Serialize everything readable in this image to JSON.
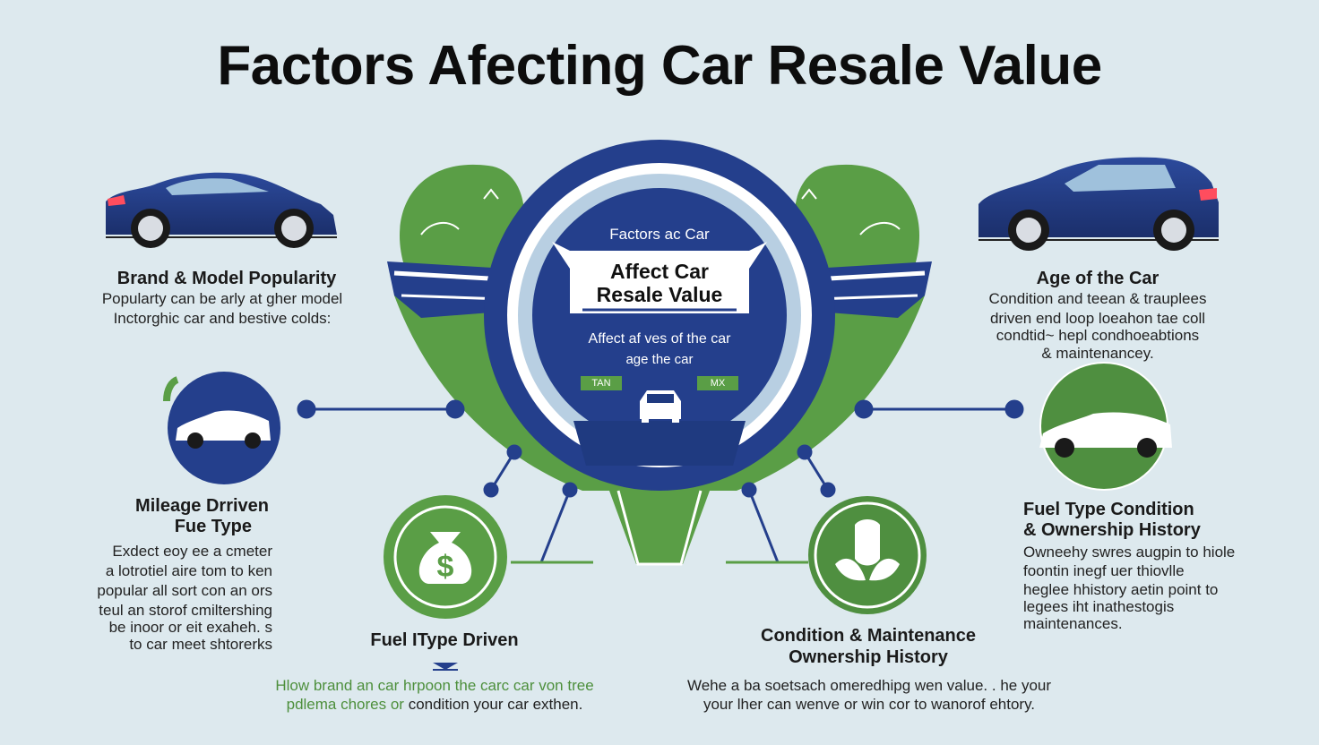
{
  "title": "Factors Afecting Car Resale Value",
  "hub": {
    "top_label": "Factors ac Car",
    "banner_line1": "Affect Car",
    "banner_line2": "Resale Value",
    "sub_line1": "Affect af ves of the car",
    "sub_line2": "age the car",
    "tag_left": "TAN",
    "tag_right": "MX"
  },
  "factors": {
    "brand": {
      "heading": "Brand & Model Popularity",
      "lines": [
        "Popularty can be arly at gher model",
        "Inctorghic car and bestive colds:"
      ]
    },
    "age": {
      "heading": "Age of the Car",
      "lines": [
        "Condition and teean & trauplees",
        "driven end loop loeahon tae coll",
        "condtid~ hepl condhoeabtions",
        "& maintenancey."
      ]
    },
    "mileage": {
      "heading_line1": "Mileage Drriven",
      "heading_line2": "Fue Type",
      "lines": [
        "Exdect eoy ee a cmeter",
        "a lotrotiel aire tom to ken",
        "popular all sort con an ors",
        "teul an storof cmiltershing",
        "be inoor or eit exaheh. s",
        "to car meet shtorerks"
      ]
    },
    "fuel_ownership": {
      "heading_line1": "Fuel Type Condition",
      "heading_line2": "& Ownership History",
      "lines": [
        "Owneehy swres augpin to hiole",
        "foontin inegf uer thiovlle",
        "heglee hhistory aetin point to",
        "legees iht inathestogis",
        "maintenances."
      ]
    },
    "fuel_driven": {
      "heading": "Fuel IType Driven"
    },
    "condition": {
      "heading_line1": "Condition & Maintenance",
      "heading_line2": "Ownership History"
    }
  },
  "bottom": {
    "left_line1": "Hlow brand an car hrpoon the carc car von tree",
    "left_line2_green": "pdlema chores or",
    "left_line2_rest": " condition your car exthen.",
    "right_line1": "Wehe a ba soetsach omeredhipg wen value. . he your",
    "right_line2": "your lher can wenve or win cor to wanorof ehtory."
  },
  "icons": {
    "money": "money-bag-icon",
    "leaf": "leaf-icon"
  },
  "colors": {
    "background": "#dde9ee",
    "navy": "#243f8c",
    "green": "#5a9e46",
    "dark_green": "#3f7f3a"
  }
}
